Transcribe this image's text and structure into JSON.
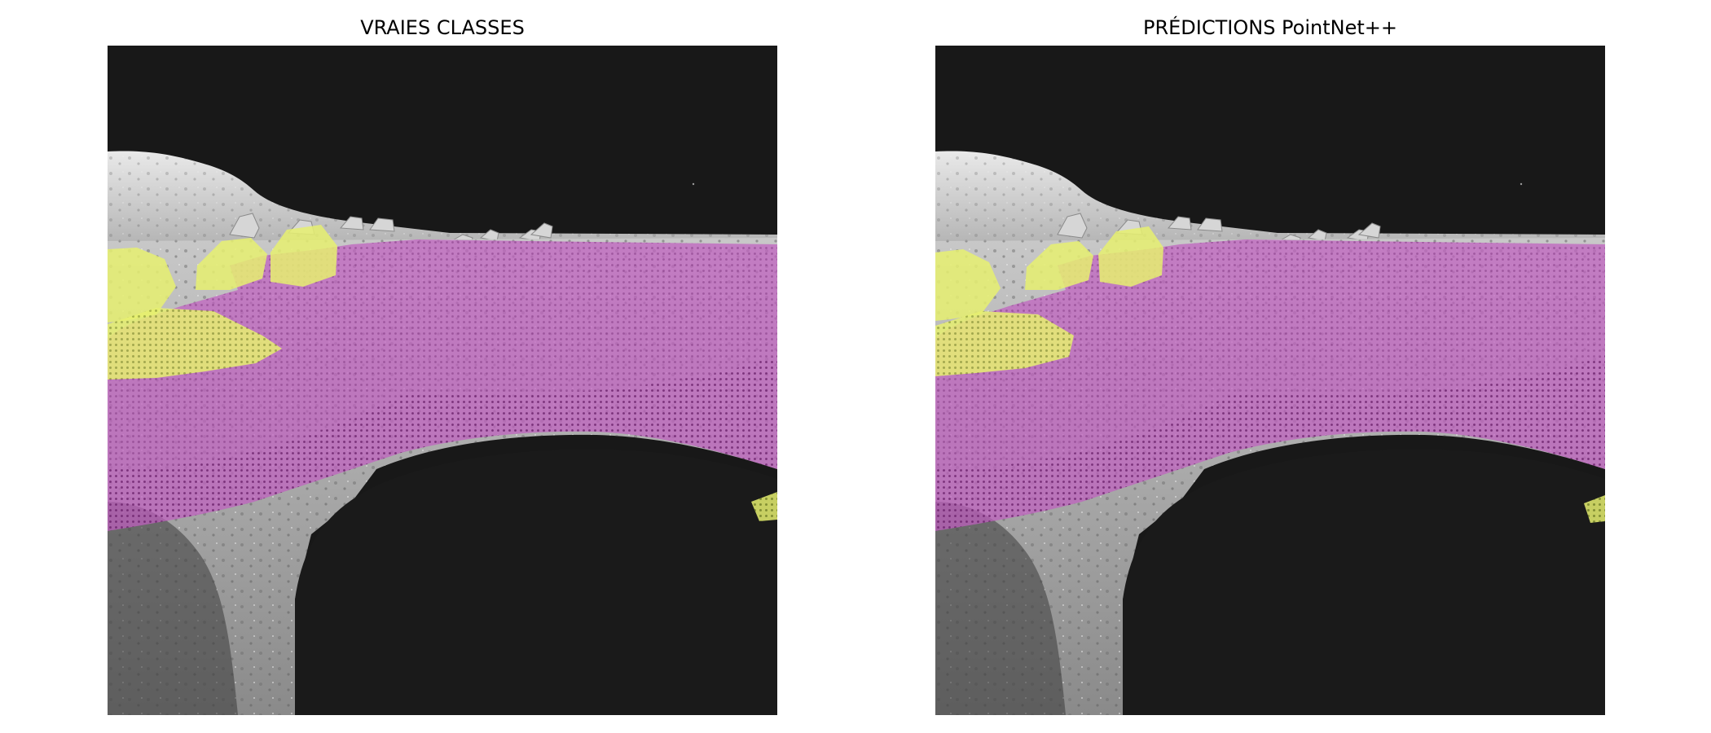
{
  "figure": {
    "panels": [
      {
        "title": "VRAIES CLASSES",
        "image_description": "lunar-surface-render",
        "overlay_layers": [
          "terrain-mask",
          "rock-mask"
        ]
      },
      {
        "title": "PRÉDICTIONS PointNet++",
        "image_description": "lunar-surface-render",
        "overlay_layers": [
          "terrain-mask",
          "rock-mask"
        ]
      }
    ]
  },
  "colors": {
    "sky": "#181818",
    "terrain_overlay": "#c060c0",
    "terrain_dots": "#6a1f6a",
    "rock_overlay": "#e6f070",
    "rock_dots": "#5a6a1a",
    "regolith_light": "#bdbdbd",
    "regolith_dark": "#7c7c7c"
  }
}
